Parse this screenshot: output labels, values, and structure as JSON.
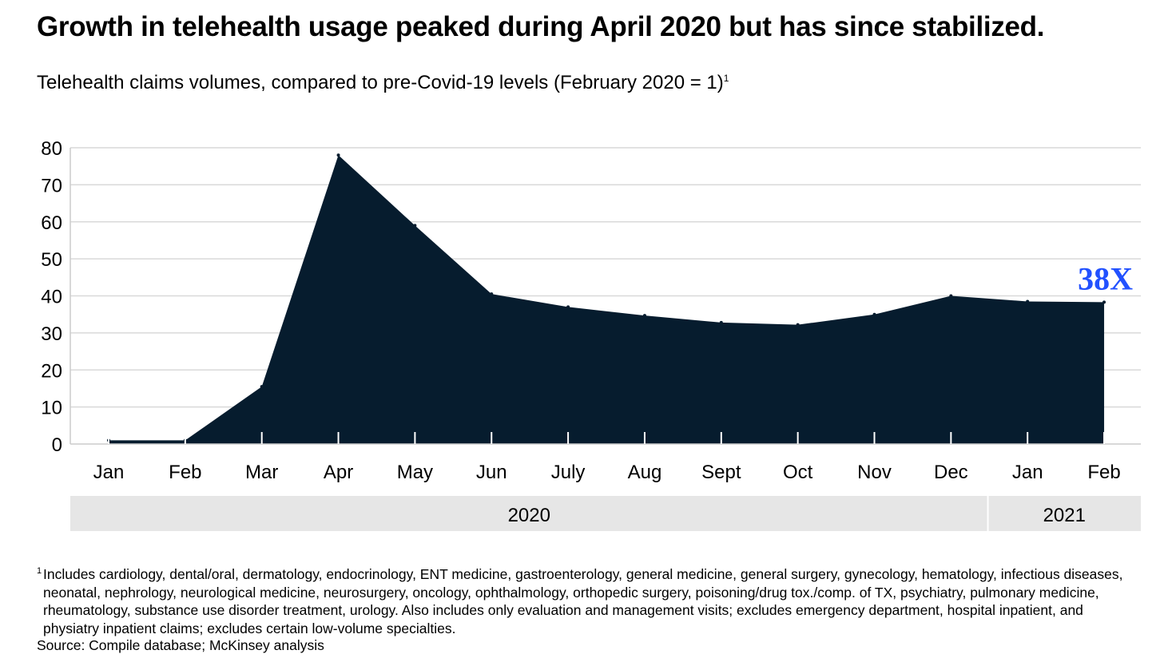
{
  "title": "Growth in telehealth usage peaked during April 2020 but has since stabilized.",
  "subtitle": "Telehealth claims volumes, compared to pre-Covid-19 levels (February 2020 = 1)",
  "subtitle_footnote_mark": "1",
  "colors": {
    "area": "#061c2e",
    "annotation": "#2251ff",
    "gridline": "#d9d9d9",
    "year_band": "#e6e6e6",
    "axis": "#cccccc"
  },
  "chart_data": {
    "type": "area",
    "x": [
      "Jan",
      "Feb",
      "Mar",
      "Apr",
      "May",
      "Jun",
      "July",
      "Aug",
      "Sept",
      "Oct",
      "Nov",
      "Dec",
      "Jan",
      "Feb"
    ],
    "values": [
      1,
      1,
      15.5,
      78,
      59,
      40.5,
      37,
      34.7,
      32.8,
      32.2,
      35,
      40,
      38.5,
      38.3
    ],
    "year_groups": [
      {
        "label": "2020",
        "span": 12
      },
      {
        "label": "2021",
        "span": 2
      }
    ],
    "yticks": [
      0,
      10,
      20,
      30,
      40,
      50,
      60,
      70,
      80
    ],
    "ylim": [
      0,
      80
    ],
    "grid": true,
    "annotation": {
      "text": "38X",
      "attached_to": "last point"
    }
  },
  "footnote": {
    "mark": "1",
    "text": "Includes cardiology, dental/oral, dermatology, endocrinology, ENT medicine, gastroenterology, general medicine, general surgery, gynecology, hematology, infectious diseases, neonatal, nephrology, neurological medicine, neurosurgery, oncology, ophthalmology, orthopedic surgery, poisoning/drug tox./comp. of TX, psychiatry, pulmonary medicine, rheumatology, substance use disorder treatment, urology. Also includes only evaluation and management visits; excludes emergency department, hospital inpatient, and physiatry inpatient claims; excludes certain low-volume specialties."
  },
  "source": "Source: Compile database; McKinsey analysis"
}
